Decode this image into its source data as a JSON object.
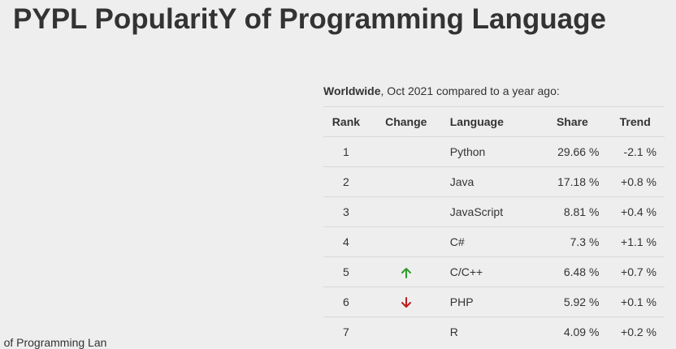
{
  "page": {
    "title": "PYPL PopularitY of Programming Language"
  },
  "table": {
    "caption_bold": "Worldwide",
    "caption_rest": ", Oct 2021 compared to a year ago:",
    "headers": {
      "rank": "Rank",
      "change": "Change",
      "language": "Language",
      "share": "Share",
      "trend": "Trend"
    },
    "rows": [
      {
        "rank": "1",
        "change": "",
        "language": "Python",
        "share": "29.66 %",
        "trend": "-2.1 %"
      },
      {
        "rank": "2",
        "change": "",
        "language": "Java",
        "share": "17.18 %",
        "trend": "+0.8 %"
      },
      {
        "rank": "3",
        "change": "",
        "language": "JavaScript",
        "share": "8.81 %",
        "trend": "+0.4 %"
      },
      {
        "rank": "4",
        "change": "",
        "language": "C#",
        "share": "7.3 %",
        "trend": "+1.1 %"
      },
      {
        "rank": "5",
        "change": "up",
        "language": "C/C++",
        "share": "6.48 %",
        "trend": "+0.7 %"
      },
      {
        "rank": "6",
        "change": "down",
        "language": "PHP",
        "share": "5.92 %",
        "trend": "+0.1 %"
      },
      {
        "rank": "7",
        "change": "",
        "language": "R",
        "share": "4.09 %",
        "trend": "+0.2 %"
      }
    ]
  },
  "icons": {
    "up": {
      "name": "arrow-up-icon",
      "color": "#2e9b2e"
    },
    "down": {
      "name": "arrow-down-icon",
      "color": "#b81c1c"
    }
  },
  "colors": {
    "background": "#eeeeee",
    "text": "#333333",
    "rule": "#d8d8d8"
  },
  "footer": {
    "cutoff_text": "' of Programming Lan"
  }
}
